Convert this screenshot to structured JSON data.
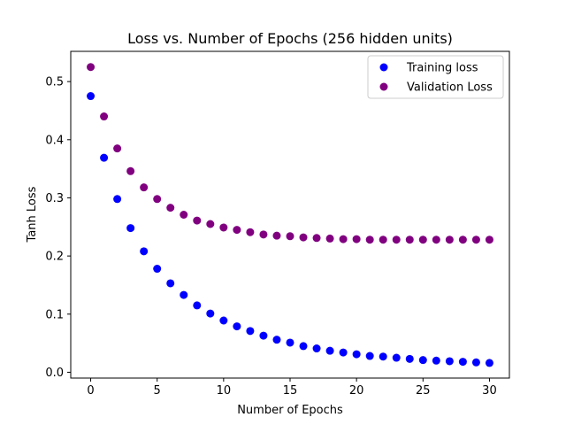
{
  "chart_data": {
    "type": "scatter",
    "title": "Loss vs. Number of Epochs (256 hidden units)",
    "xlabel": "Number of Epochs",
    "ylabel": "Tanh Loss",
    "xlim": [
      -1.5,
      31.5
    ],
    "ylim": [
      -0.01,
      0.552
    ],
    "xticks": [
      0,
      5,
      10,
      15,
      20,
      25,
      30
    ],
    "yticks": [
      0.0,
      0.1,
      0.2,
      0.3,
      0.4,
      0.5
    ],
    "xtick_labels": [
      "0",
      "5",
      "10",
      "15",
      "20",
      "25",
      "30"
    ],
    "ytick_labels": [
      "0.0",
      "0.1",
      "0.2",
      "0.3",
      "0.4",
      "0.5"
    ],
    "grid": false,
    "legend_position": "top-right",
    "x": [
      0,
      1,
      2,
      3,
      4,
      5,
      6,
      7,
      8,
      9,
      10,
      11,
      12,
      13,
      14,
      15,
      16,
      17,
      18,
      19,
      20,
      21,
      22,
      23,
      24,
      25,
      26,
      27,
      28,
      29,
      30
    ],
    "series": [
      {
        "name": "Training loss",
        "color": "#0000ff",
        "values": [
          0.475,
          0.369,
          0.298,
          0.248,
          0.208,
          0.178,
          0.153,
          0.133,
          0.115,
          0.101,
          0.089,
          0.079,
          0.071,
          0.063,
          0.056,
          0.051,
          0.045,
          0.041,
          0.037,
          0.034,
          0.031,
          0.028,
          0.027,
          0.025,
          0.023,
          0.021,
          0.02,
          0.019,
          0.018,
          0.017,
          0.016
        ]
      },
      {
        "name": "Validation Loss",
        "color": "#800080",
        "values": [
          0.525,
          0.44,
          0.385,
          0.346,
          0.318,
          0.298,
          0.283,
          0.271,
          0.261,
          0.255,
          0.249,
          0.245,
          0.241,
          0.237,
          0.235,
          0.234,
          0.232,
          0.231,
          0.23,
          0.229,
          0.229,
          0.228,
          0.228,
          0.228,
          0.228,
          0.228,
          0.228,
          0.228,
          0.228,
          0.228,
          0.228
        ]
      }
    ]
  }
}
